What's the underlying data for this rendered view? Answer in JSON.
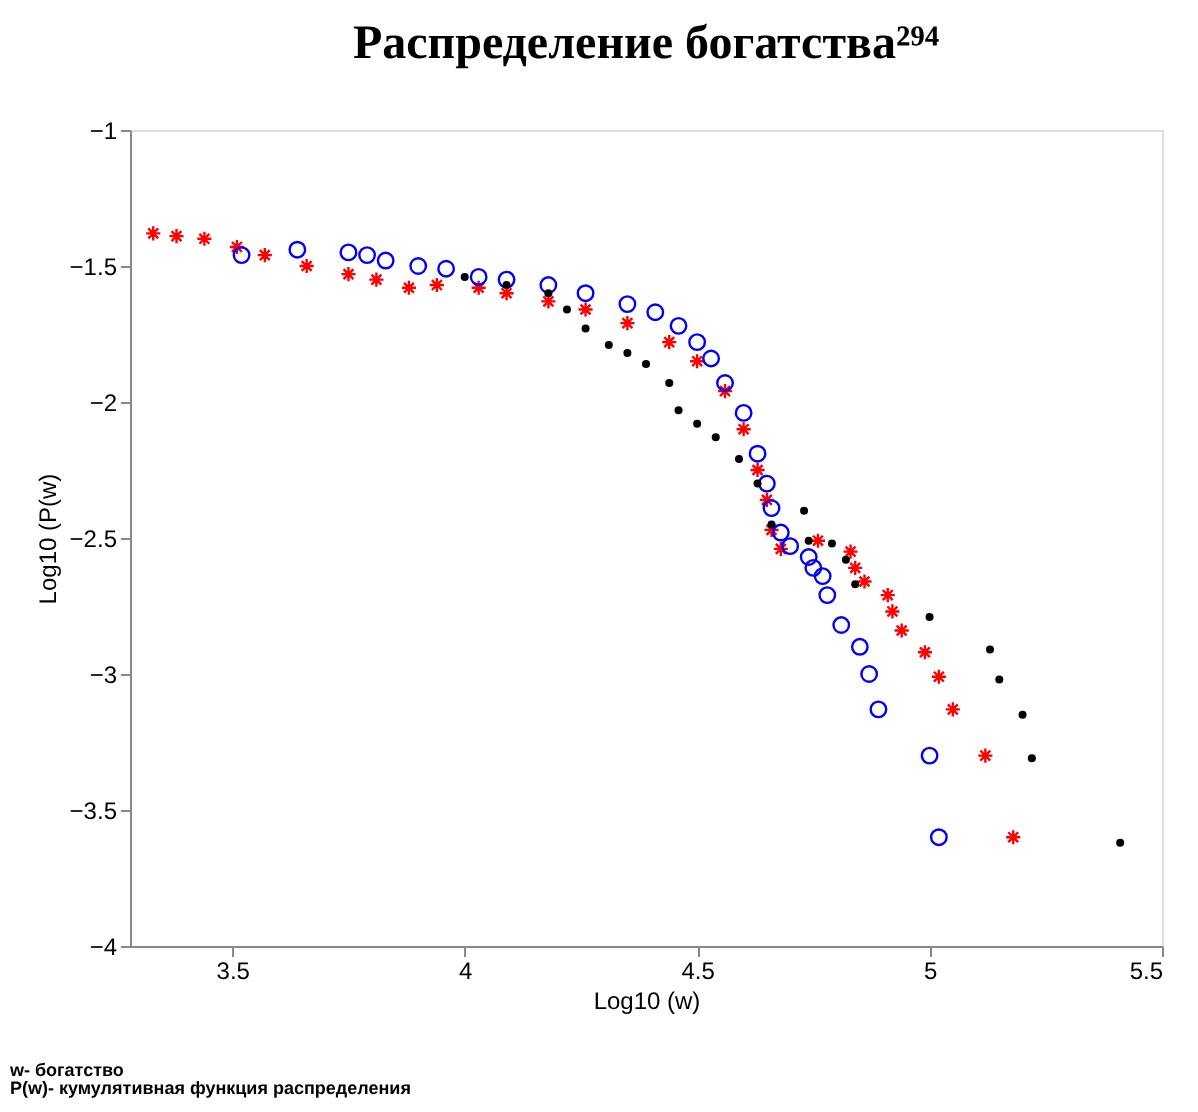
{
  "chart_data": {
    "type": "scatter",
    "title": "Распределение богатства²⁹⁴",
    "xlabel": "Log10 (w)",
    "ylabel": "Log10 (P(w)",
    "annotations": [
      "w- богатство",
      "P(w)- кумулятивная функция распределения"
    ],
    "xlim": [
      3.28,
      5.5
    ],
    "xticks": [
      3.5,
      4,
      4.5,
      5,
      5.5
    ],
    "ylim": [
      -4,
      -1
    ],
    "yticks": [
      -4,
      -3.5,
      -3,
      -2.5,
      -2,
      -1.5,
      -1
    ],
    "grid": false,
    "legend": false,
    "series": [
      {
        "color": "#000000",
        "marker": "circle",
        "x": [
          4.0,
          4.09,
          4.18,
          4.22,
          4.26,
          4.31,
          4.35,
          4.39,
          4.44,
          4.46,
          4.5,
          4.54,
          4.59,
          4.63,
          4.66,
          4.73,
          4.74,
          4.79,
          4.82,
          4.84,
          5.0,
          5.13,
          5.15,
          5.2,
          5.22,
          5.41
        ],
        "values": [
          -1.54,
          -1.57,
          -1.6,
          -1.66,
          -1.73,
          -1.79,
          -1.82,
          -1.86,
          -1.93,
          -2.03,
          -2.08,
          -2.13,
          -2.21,
          -2.3,
          -2.45,
          -2.4,
          -2.51,
          -2.52,
          -2.58,
          -2.67,
          -2.79,
          -2.91,
          -3.02,
          -3.15,
          -3.31,
          -3.62
        ]
      },
      {
        "color": "#0000ff",
        "marker": "circle",
        "x": [
          3.52,
          3.64,
          3.75,
          3.79,
          3.83,
          3.9,
          3.96,
          4.03,
          4.09,
          4.18,
          4.26,
          4.35,
          4.41,
          4.46,
          4.5,
          4.53,
          4.56,
          4.6,
          4.63,
          4.65,
          4.66,
          4.68,
          4.7,
          4.74,
          4.75,
          4.77,
          4.78,
          4.81,
          4.85,
          4.87,
          4.89,
          5.0,
          5.02
        ],
        "values": [
          -1.46,
          -1.44,
          -1.45,
          -1.46,
          -1.48,
          -1.5,
          -1.51,
          -1.54,
          -1.55,
          -1.57,
          -1.6,
          -1.64,
          -1.67,
          -1.72,
          -1.78,
          -1.84,
          -1.93,
          -2.04,
          -2.19,
          -2.3,
          -2.39,
          -2.48,
          -2.53,
          -2.57,
          -2.61,
          -2.64,
          -2.71,
          -2.82,
          -2.9,
          -3.0,
          -3.13,
          -3.3,
          -3.6
        ]
      },
      {
        "color": "#ff0000",
        "marker": "cross",
        "x": [
          3.33,
          3.38,
          3.44,
          3.51,
          3.57,
          3.66,
          3.75,
          3.81,
          3.88,
          3.94,
          4.03,
          4.09,
          4.18,
          4.26,
          4.35,
          4.44,
          4.5,
          4.56,
          4.6,
          4.63,
          4.65,
          4.66,
          4.68,
          4.76,
          4.83,
          4.84,
          4.86,
          4.91,
          4.92,
          4.94,
          4.99,
          5.02,
          5.05,
          5.12,
          5.18
        ],
        "values": [
          -1.38,
          -1.39,
          -1.4,
          -1.43,
          -1.46,
          -1.5,
          -1.53,
          -1.55,
          -1.58,
          -1.57,
          -1.58,
          -1.6,
          -1.63,
          -1.66,
          -1.71,
          -1.78,
          -1.85,
          -1.96,
          -2.1,
          -2.25,
          -2.36,
          -2.47,
          -2.54,
          -2.51,
          -2.55,
          -2.61,
          -2.66,
          -2.71,
          -2.77,
          -2.84,
          -2.92,
          -3.01,
          -3.13,
          -3.3,
          -3.6
        ]
      }
    ]
  }
}
